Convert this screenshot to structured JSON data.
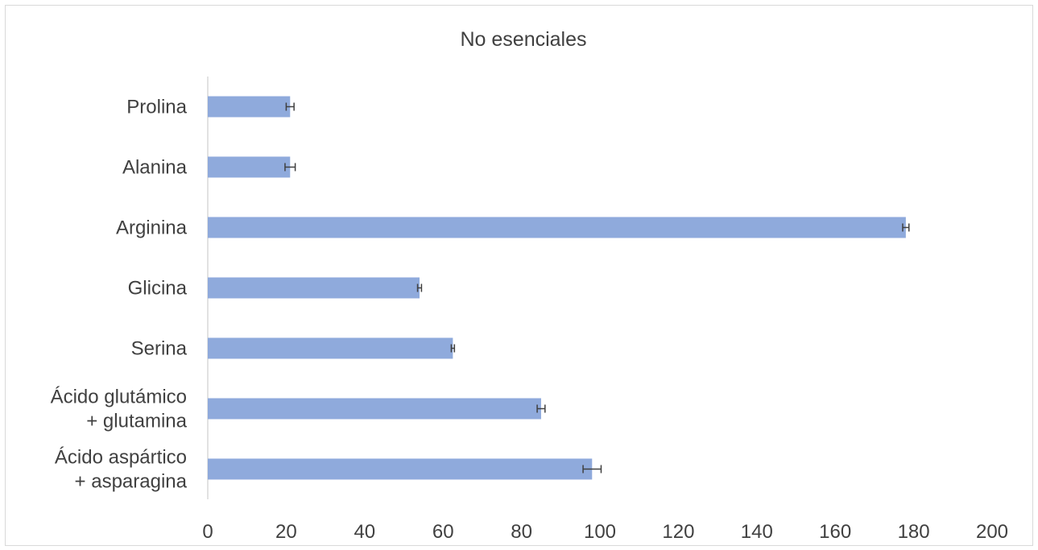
{
  "chart_data": {
    "type": "bar",
    "orientation": "horizontal",
    "title": "No esenciales",
    "xlabel": "",
    "ylabel": "",
    "categories": [
      [
        "Prolina"
      ],
      [
        "Alanina"
      ],
      [
        "Arginina"
      ],
      [
        "Glicina"
      ],
      [
        "Serina"
      ],
      [
        "Ácido glutámico",
        "+ glutamina"
      ],
      [
        "Ácido aspártico",
        "+ asparagina"
      ]
    ],
    "values": [
      21,
      21,
      178,
      54,
      62.5,
      85,
      98
    ],
    "errors": [
      1,
      1.3,
      0.8,
      0.5,
      0.4,
      1,
      2.3
    ],
    "xlim": [
      0,
      200
    ],
    "xticks": [
      0,
      20,
      40,
      60,
      80,
      100,
      120,
      140,
      160,
      180,
      200
    ],
    "grid": false,
    "legend": "none",
    "bar_color": "#8faadc",
    "error_color": "#404040"
  }
}
